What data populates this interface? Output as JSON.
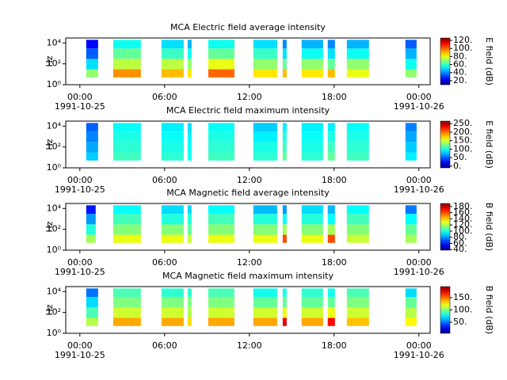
{
  "chart_data": [
    {
      "type": "spectrogram",
      "title": "MCA  Electric field average intensity",
      "ylabel": "Hz",
      "colorbar_label": "E field (dB)",
      "xlim": [
        -1,
        24.8
      ],
      "xticks": [
        {
          "value": 0,
          "label": "00:00"
        },
        {
          "value": 6,
          "label": "06:00"
        },
        {
          "value": 12,
          "label": "12:00"
        },
        {
          "value": 18,
          "label": "18:00"
        },
        {
          "value": 24,
          "label": "00:00"
        }
      ],
      "x_date_labels": [
        {
          "value": 0,
          "label": "1991-10-25"
        },
        {
          "value": 24,
          "label": "1991-10-26"
        }
      ],
      "ylim": [
        1,
        30000
      ],
      "yscale": "log",
      "yticks": [
        {
          "value": 1,
          "label": "10⁰"
        },
        {
          "value": 100,
          "label": "10²"
        },
        {
          "value": 10000,
          "label": "10⁴"
        }
      ],
      "ybands": [
        5,
        30,
        300,
        3000,
        20000
      ],
      "segments": [
        [
          0.45,
          1.29
        ],
        [
          2.36,
          4.32
        ],
        [
          5.78,
          7.35
        ],
        [
          7.63,
          7.91
        ],
        [
          9.09,
          10.94
        ],
        [
          12.28,
          13.97
        ],
        [
          14.36,
          14.64
        ],
        [
          15.7,
          17.22
        ],
        [
          17.55,
          18.06
        ],
        [
          18.9,
          20.47
        ],
        [
          23.05,
          23.84
        ]
      ],
      "values": [
        [
          70,
          50,
          35,
          25
        ],
        [
          95,
          75,
          65,
          55
        ],
        [
          90,
          75,
          60,
          50
        ],
        [
          85,
          70,
          55,
          45
        ],
        [
          100,
          80,
          65,
          55
        ],
        [
          85,
          70,
          60,
          50
        ],
        [
          90,
          65,
          50,
          40
        ],
        [
          85,
          70,
          55,
          45
        ],
        [
          90,
          65,
          50,
          40
        ],
        [
          80,
          70,
          55,
          45
        ],
        [
          70,
          55,
          45,
          35
        ]
      ],
      "clim": [
        10,
        126
      ],
      "cticks": [
        {
          "value": 20,
          "label": "20."
        },
        {
          "value": 40,
          "label": "40."
        },
        {
          "value": 60,
          "label": "60."
        },
        {
          "value": 80,
          "label": "80."
        },
        {
          "value": 100,
          "label": "100."
        },
        {
          "value": 120,
          "label": "120."
        }
      ],
      "colormap": "jet"
    },
    {
      "type": "spectrogram",
      "title": "MCA  Electric field maximum intensity",
      "ylabel": "Hz",
      "colorbar_label": "E field (dB)",
      "xlim": [
        -1,
        24.8
      ],
      "xticks": [
        {
          "value": 0,
          "label": "00:00"
        },
        {
          "value": 6,
          "label": "06:00"
        },
        {
          "value": 12,
          "label": "12:00"
        },
        {
          "value": 18,
          "label": "18:00"
        },
        {
          "value": 24,
          "label": "00:00"
        }
      ],
      "x_date_labels": [
        {
          "value": 0,
          "label": "1991-10-25"
        },
        {
          "value": 24,
          "label": "1991-10-26"
        }
      ],
      "ylim": [
        1,
        30000
      ],
      "yscale": "log",
      "yticks": [
        {
          "value": 1,
          "label": "10⁰"
        },
        {
          "value": 100,
          "label": "10²"
        },
        {
          "value": 10000,
          "label": "10⁴"
        }
      ],
      "ybands": [
        5,
        30,
        300,
        3000,
        20000
      ],
      "segments": [
        [
          0.45,
          1.29
        ],
        [
          2.36,
          4.32
        ],
        [
          5.78,
          7.35
        ],
        [
          7.63,
          7.91
        ],
        [
          9.09,
          10.94
        ],
        [
          12.28,
          13.97
        ],
        [
          14.36,
          14.64
        ],
        [
          15.7,
          17.22
        ],
        [
          17.55,
          18.06
        ],
        [
          18.9,
          20.47
        ],
        [
          23.05,
          23.84
        ]
      ],
      "values": [
        [
          80,
          70,
          60,
          50
        ],
        [
          110,
          105,
          100,
          95
        ],
        [
          105,
          100,
          95,
          90
        ],
        [
          100,
          95,
          90,
          85
        ],
        [
          110,
          105,
          100,
          95
        ],
        [
          105,
          100,
          90,
          80
        ],
        [
          120,
          110,
          100,
          90
        ],
        [
          105,
          100,
          95,
          90
        ],
        [
          120,
          110,
          100,
          90
        ],
        [
          110,
          105,
          100,
          95
        ],
        [
          90,
          80,
          70,
          60
        ]
      ],
      "clim": [
        -10,
        265
      ],
      "cticks": [
        {
          "value": 0,
          "label": "0."
        },
        {
          "value": 50,
          "label": "50."
        },
        {
          "value": 100,
          "label": "100."
        },
        {
          "value": 150,
          "label": "150."
        },
        {
          "value": 200,
          "label": "200."
        },
        {
          "value": 250,
          "label": "250."
        }
      ],
      "colormap": "jet"
    },
    {
      "type": "spectrogram",
      "title": "MCA  Magnetic field average intensity",
      "ylabel": "Hz",
      "colorbar_label": "B field (dB)",
      "xlim": [
        -1,
        24.8
      ],
      "xticks": [
        {
          "value": 0,
          "label": "00:00"
        },
        {
          "value": 6,
          "label": "06:00"
        },
        {
          "value": 12,
          "label": "12:00"
        },
        {
          "value": 18,
          "label": "18:00"
        },
        {
          "value": 24,
          "label": "00:00"
        }
      ],
      "x_date_labels": [
        {
          "value": 0,
          "label": "1991-10-25"
        },
        {
          "value": 24,
          "label": "1991-10-26"
        }
      ],
      "ylim": [
        1,
        30000
      ],
      "yscale": "log",
      "yticks": [
        {
          "value": 1,
          "label": "10⁰"
        },
        {
          "value": 100,
          "label": "10²"
        },
        {
          "value": 10000,
          "label": "10⁴"
        }
      ],
      "ybands": [
        5,
        30,
        300,
        3000,
        20000
      ],
      "segments": [
        [
          0.45,
          1.12
        ],
        [
          2.36,
          4.32
        ],
        [
          5.78,
          7.35
        ],
        [
          7.63,
          7.91
        ],
        [
          9.09,
          10.94
        ],
        [
          12.28,
          13.97
        ],
        [
          14.36,
          14.64
        ],
        [
          15.7,
          17.22
        ],
        [
          17.55,
          18.06
        ],
        [
          18.9,
          20.47
        ],
        [
          23.05,
          23.84
        ]
      ],
      "values": [
        [
          120,
          100,
          80,
          60
        ],
        [
          130,
          115,
          105,
          95
        ],
        [
          130,
          115,
          100,
          90
        ],
        [
          125,
          110,
          100,
          90
        ],
        [
          130,
          115,
          105,
          95
        ],
        [
          130,
          115,
          100,
          85
        ],
        [
          160,
          120,
          95,
          80
        ],
        [
          130,
          115,
          100,
          90
        ],
        [
          160,
          120,
          95,
          85
        ],
        [
          125,
          115,
          105,
          95
        ],
        [
          120,
          110,
          95,
          75
        ]
      ],
      "clim": [
        38,
        190
      ],
      "cticks": [
        {
          "value": 40,
          "label": "40."
        },
        {
          "value": 60,
          "label": "60."
        },
        {
          "value": 80,
          "label": "80."
        },
        {
          "value": 100,
          "label": "100."
        },
        {
          "value": 120,
          "label": "120."
        },
        {
          "value": 140,
          "label": "140."
        },
        {
          "value": 160,
          "label": "160."
        },
        {
          "value": 180,
          "label": "180."
        }
      ],
      "colormap": "jet"
    },
    {
      "type": "spectrogram",
      "title": "MCA  Magnetic field maximum intensity",
      "ylabel": "Hz",
      "colorbar_label": "B field (dB)",
      "xlim": [
        -1,
        24.8
      ],
      "xticks": [
        {
          "value": 0,
          "label": "00:00"
        },
        {
          "value": 6,
          "label": "06:00"
        },
        {
          "value": 12,
          "label": "12:00"
        },
        {
          "value": 18,
          "label": "18:00"
        },
        {
          "value": 24,
          "label": "00:00"
        }
      ],
      "x_date_labels": [
        {
          "value": 0,
          "label": "1991-10-25"
        },
        {
          "value": 24,
          "label": "1991-10-26"
        }
      ],
      "ylim": [
        1,
        30000
      ],
      "yscale": "log",
      "yticks": [
        {
          "value": 1,
          "label": "10⁰"
        },
        {
          "value": 100,
          "label": "10²"
        },
        {
          "value": 10000,
          "label": "10⁴"
        }
      ],
      "ybands": [
        5,
        30,
        300,
        3000,
        20000
      ],
      "segments": [
        [
          0.45,
          1.29
        ],
        [
          2.36,
          4.32
        ],
        [
          5.78,
          7.35
        ],
        [
          7.63,
          7.91
        ],
        [
          9.09,
          10.94
        ],
        [
          12.28,
          13.97
        ],
        [
          14.36,
          14.64
        ],
        [
          15.7,
          17.22
        ],
        [
          17.55,
          18.06
        ],
        [
          18.9,
          20.47
        ],
        [
          23.05,
          23.84
        ]
      ],
      "values": [
        [
          110,
          90,
          70,
          50
        ],
        [
          140,
          115,
          100,
          90
        ],
        [
          140,
          115,
          100,
          85
        ],
        [
          130,
          110,
          100,
          85
        ],
        [
          140,
          115,
          100,
          90
        ],
        [
          140,
          115,
          95,
          80
        ],
        [
          175,
          120,
          95,
          80
        ],
        [
          140,
          115,
          95,
          85
        ],
        [
          170,
          120,
          95,
          80
        ],
        [
          135,
          115,
          100,
          90
        ],
        [
          125,
          110,
          95,
          70
        ]
      ],
      "clim": [
        5,
        195
      ],
      "cticks": [
        {
          "value": 50,
          "label": "50."
        },
        {
          "value": 100,
          "label": "100."
        },
        {
          "value": 150,
          "label": "150."
        }
      ],
      "colormap": "jet"
    }
  ]
}
